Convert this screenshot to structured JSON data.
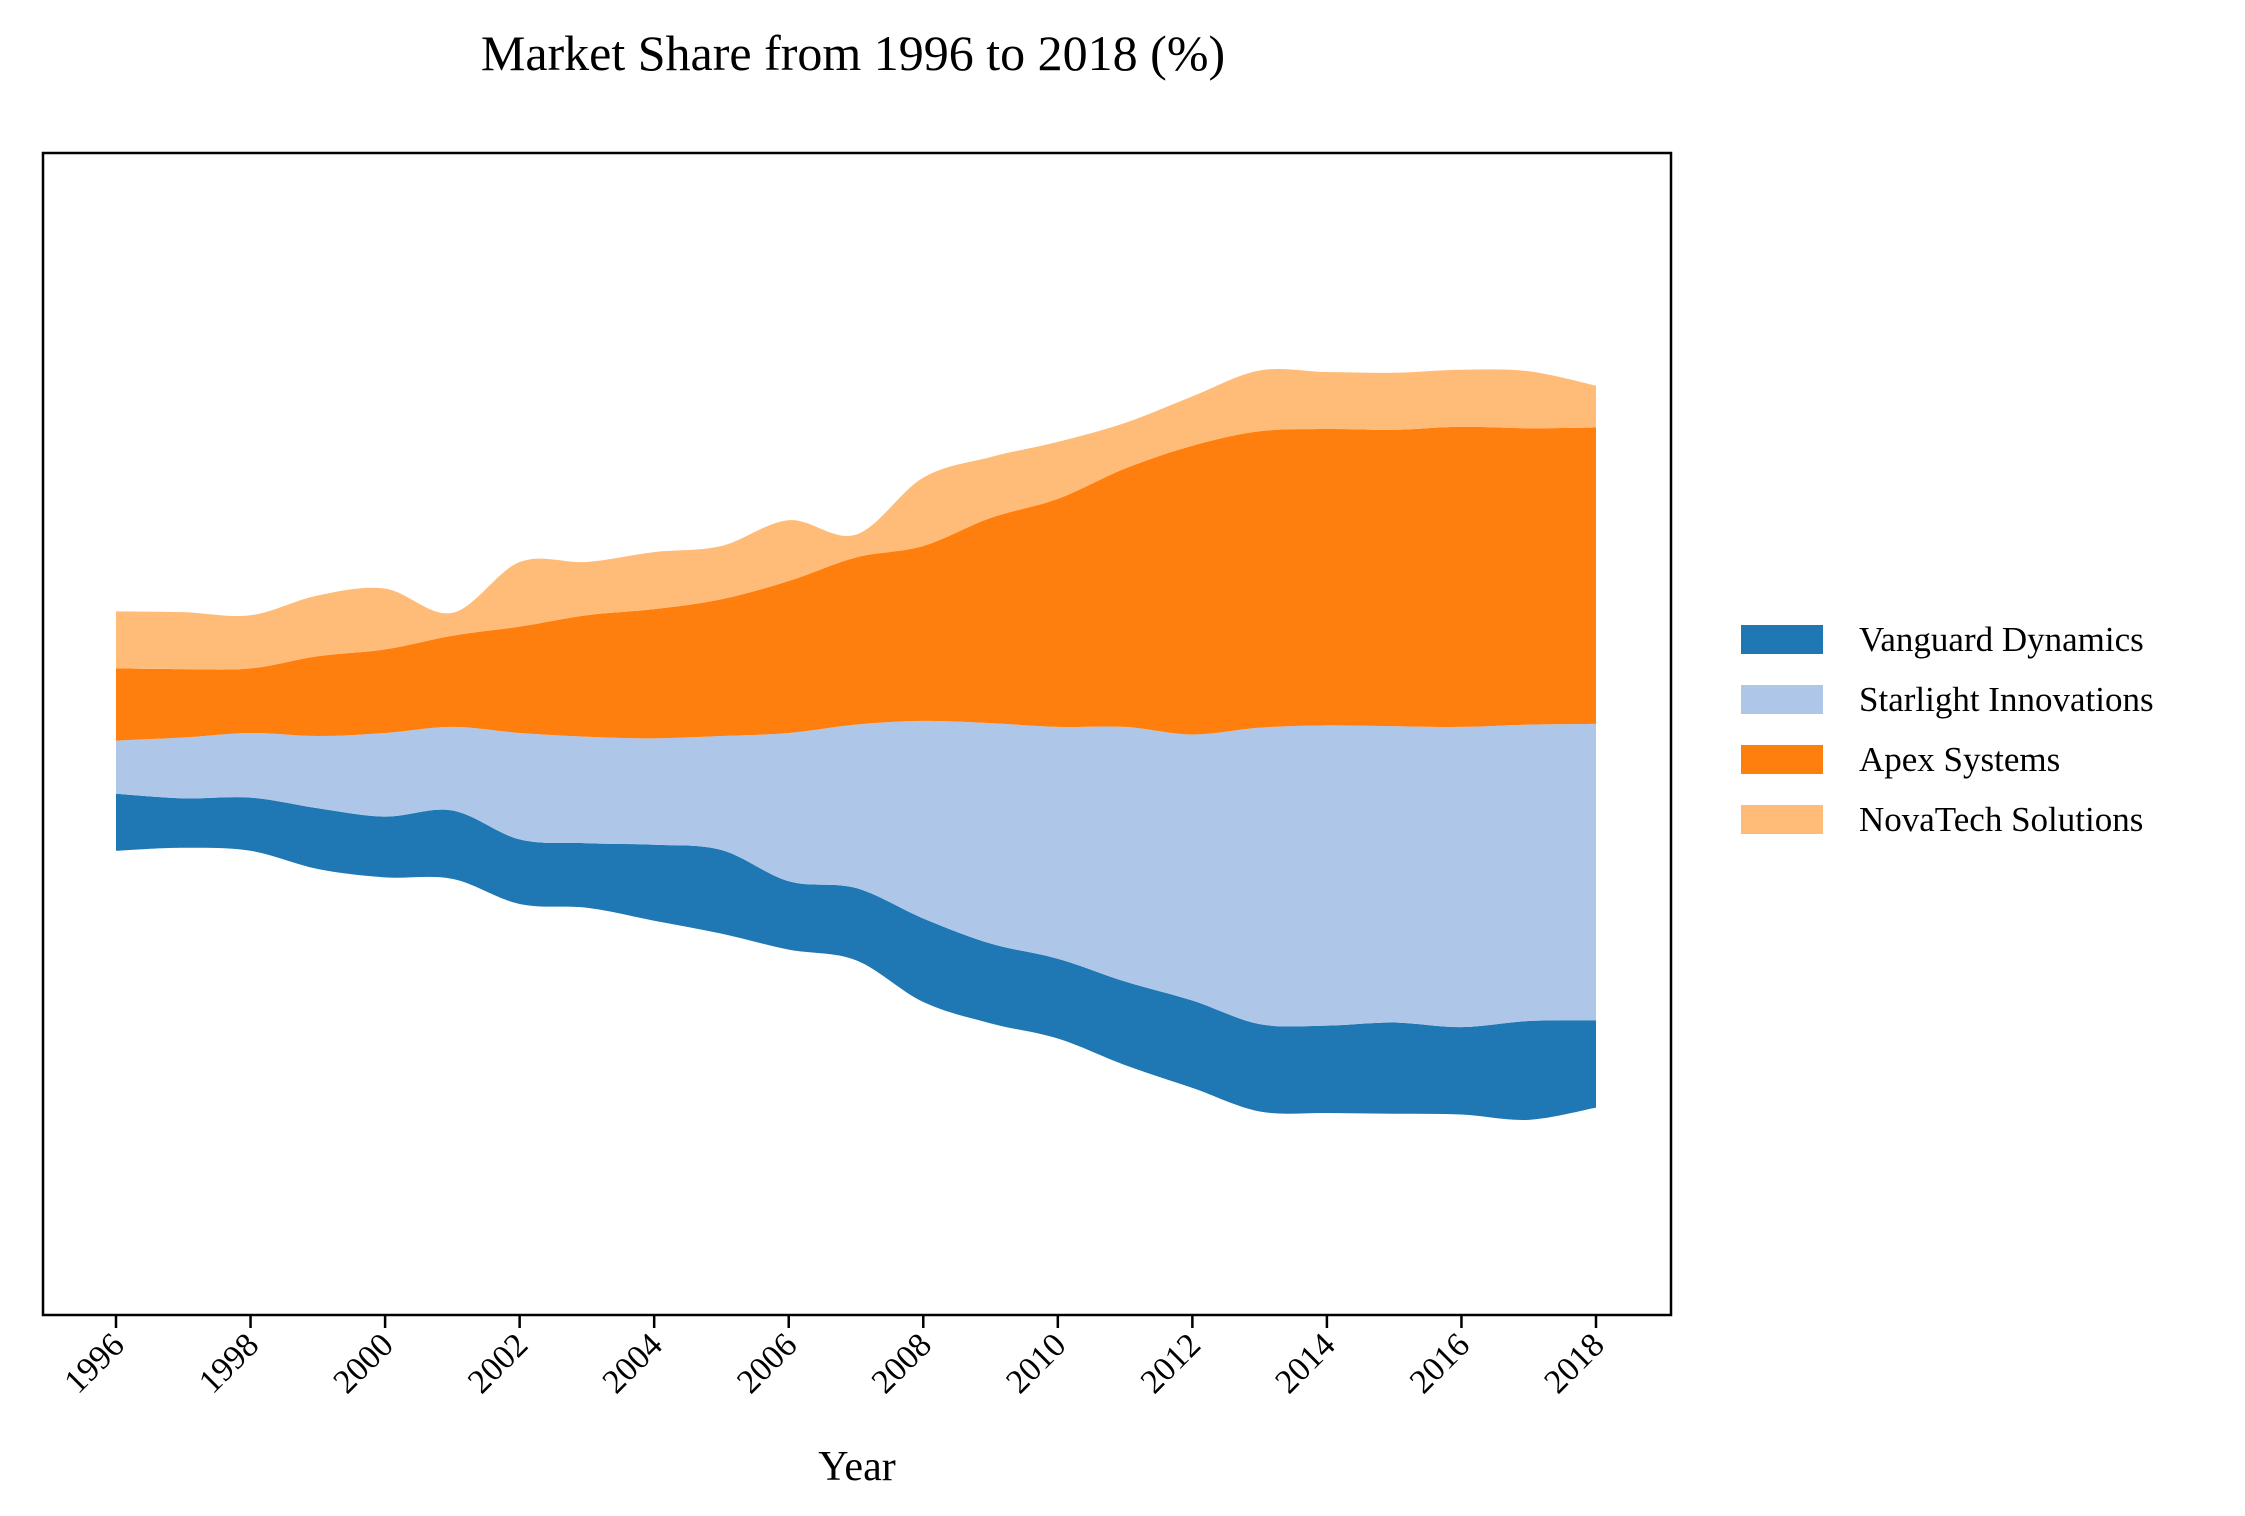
{
  "chart_data": {
    "type": "area",
    "stacked": true,
    "baseline": "wiggle",
    "title": "Market Share from 1996 to 2018 (%)",
    "xlabel": "Year",
    "ylabel": "",
    "x": [
      1996,
      1997,
      1998,
      1999,
      2000,
      2001,
      2002,
      2003,
      2004,
      2005,
      2006,
      2007,
      2008,
      2009,
      2010,
      2011,
      2012,
      2013,
      2014,
      2015,
      2016,
      2017,
      2018
    ],
    "xticks": [
      "1996",
      "1998",
      "2000",
      "2002",
      "2004",
      "2006",
      "2008",
      "2010",
      "2012",
      "2014",
      "2016",
      "2018"
    ],
    "grid": false,
    "legend_position": "center-right",
    "series": [
      {
        "name": "Vanguard Dynamics",
        "color": "#1f77b4",
        "values": [
          7.5,
          6.5,
          7,
          8,
          8,
          9,
          8.5,
          8.5,
          10,
          11,
          9,
          9.5,
          11,
          10.5,
          10.5,
          11,
          11.5,
          11.5,
          11.5,
          12,
          11.5,
          13,
          11.5
        ]
      },
      {
        "name": "Starlight Innovations",
        "color": "#aec7e8",
        "values": [
          7,
          8,
          8.5,
          9.5,
          11,
          11,
          14,
          14,
          14,
          15,
          19.5,
          21.5,
          26,
          29,
          30.5,
          33.5,
          35,
          39,
          39.5,
          39,
          39.5,
          39,
          39
        ]
      },
      {
        "name": "Apex Systems",
        "color": "#ff7f0e",
        "values": [
          9.5,
          9,
          8.5,
          10.5,
          11,
          12,
          14,
          16,
          17,
          18,
          20,
          22,
          23,
          27,
          30,
          34,
          38,
          39,
          39,
          39,
          39.5,
          39,
          39
        ]
      },
      {
        "name": "NovaTech Solutions",
        "color": "#ffbb78",
        "values": [
          7.5,
          7.5,
          7,
          8,
          8,
          3,
          8.5,
          7,
          7.5,
          7,
          8,
          3,
          9,
          8,
          7.5,
          6,
          6.5,
          8,
          7.5,
          7.5,
          7.5,
          7.5,
          5.5
        ]
      }
    ]
  }
}
